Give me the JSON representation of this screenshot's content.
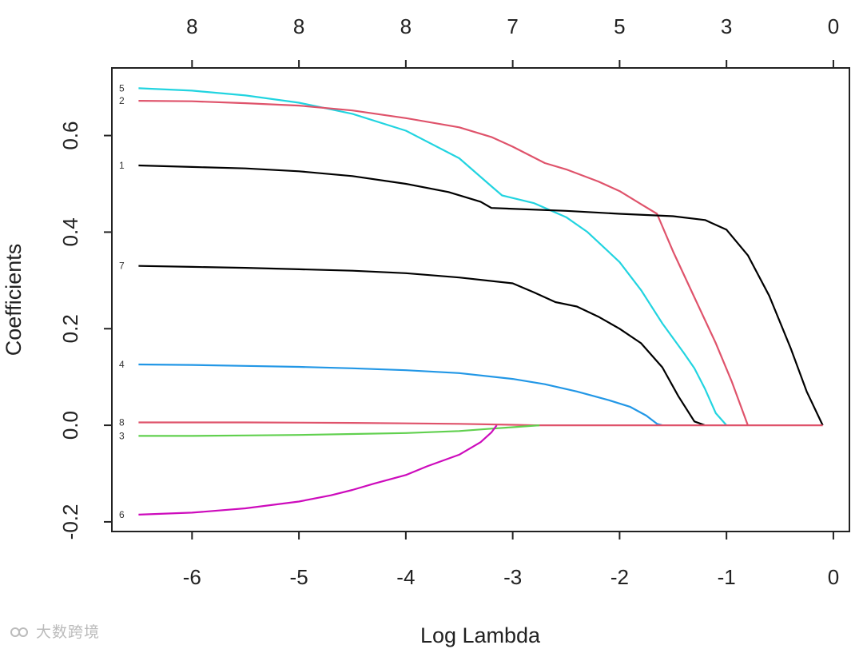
{
  "chart_data": {
    "type": "line",
    "xlabel": "Log Lambda",
    "ylabel": "Coefficients",
    "xlim": [
      -6.75,
      0.15
    ],
    "ylim": [
      -0.22,
      0.74
    ],
    "x_ticks": [
      -6,
      -5,
      -4,
      -3,
      -2,
      -1,
      0
    ],
    "x_tick_labels": [
      "-6",
      "-5",
      "-4",
      "-3",
      "-2",
      "-1",
      "0"
    ],
    "y_ticks": [
      -0.2,
      0.0,
      0.2,
      0.4,
      0.6
    ],
    "y_tick_labels": [
      "-0.2",
      "0.0",
      "0.2",
      "0.4",
      "0.6"
    ],
    "top_ticks": [
      -6,
      -5,
      -4,
      -3,
      -2,
      -1,
      0
    ],
    "top_tick_labels": [
      "8",
      "8",
      "8",
      "7",
      "5",
      "3",
      "0"
    ],
    "series": [
      {
        "name": "5",
        "color": "#22d4e0",
        "points": [
          [
            -6.5,
            0.698
          ],
          [
            -6.0,
            0.693
          ],
          [
            -5.5,
            0.683
          ],
          [
            -5.0,
            0.668
          ],
          [
            -4.5,
            0.645
          ],
          [
            -4.0,
            0.61
          ],
          [
            -3.5,
            0.553
          ],
          [
            -3.2,
            0.495
          ],
          [
            -3.1,
            0.476
          ],
          [
            -2.8,
            0.46
          ],
          [
            -2.5,
            0.431
          ],
          [
            -2.3,
            0.4
          ],
          [
            -2.0,
            0.338
          ],
          [
            -1.8,
            0.28
          ],
          [
            -1.6,
            0.211
          ],
          [
            -1.4,
            0.15
          ],
          [
            -1.3,
            0.118
          ],
          [
            -1.2,
            0.075
          ],
          [
            -1.1,
            0.025
          ],
          [
            -1.0,
            0.0
          ]
        ]
      },
      {
        "name": "2",
        "color": "#df536b",
        "points": [
          [
            -6.5,
            0.672
          ],
          [
            -6.0,
            0.671
          ],
          [
            -5.5,
            0.667
          ],
          [
            -5.0,
            0.662
          ],
          [
            -4.5,
            0.652
          ],
          [
            -4.0,
            0.636
          ],
          [
            -3.5,
            0.617
          ],
          [
            -3.2,
            0.597
          ],
          [
            -3.0,
            0.577
          ],
          [
            -2.7,
            0.543
          ],
          [
            -2.5,
            0.53
          ],
          [
            -2.2,
            0.505
          ],
          [
            -2.0,
            0.485
          ],
          [
            -1.8,
            0.458
          ],
          [
            -1.65,
            0.438
          ],
          [
            -1.5,
            0.36
          ],
          [
            -1.3,
            0.265
          ],
          [
            -1.1,
            0.17
          ],
          [
            -0.95,
            0.09
          ],
          [
            -0.8,
            0.0
          ]
        ]
      },
      {
        "name": "1",
        "color": "#000000",
        "points": [
          [
            -6.5,
            0.538
          ],
          [
            -6.0,
            0.535
          ],
          [
            -5.5,
            0.532
          ],
          [
            -5.0,
            0.526
          ],
          [
            -4.5,
            0.516
          ],
          [
            -4.0,
            0.5
          ],
          [
            -3.6,
            0.483
          ],
          [
            -3.3,
            0.463
          ],
          [
            -3.2,
            0.45
          ],
          [
            -2.5,
            0.444
          ],
          [
            -2.0,
            0.438
          ],
          [
            -1.5,
            0.433
          ],
          [
            -1.2,
            0.425
          ],
          [
            -1.0,
            0.405
          ],
          [
            -0.8,
            0.352
          ],
          [
            -0.6,
            0.268
          ],
          [
            -0.4,
            0.16
          ],
          [
            -0.25,
            0.07
          ],
          [
            -0.1,
            0.0
          ]
        ]
      },
      {
        "name": "7",
        "color": "#000000",
        "points": [
          [
            -6.5,
            0.33
          ],
          [
            -6.0,
            0.328
          ],
          [
            -5.5,
            0.326
          ],
          [
            -5.0,
            0.323
          ],
          [
            -4.5,
            0.32
          ],
          [
            -4.0,
            0.315
          ],
          [
            -3.5,
            0.306
          ],
          [
            -3.0,
            0.294
          ],
          [
            -2.8,
            0.275
          ],
          [
            -2.6,
            0.255
          ],
          [
            -2.4,
            0.246
          ],
          [
            -2.2,
            0.225
          ],
          [
            -2.0,
            0.2
          ],
          [
            -1.8,
            0.17
          ],
          [
            -1.6,
            0.12
          ],
          [
            -1.45,
            0.06
          ],
          [
            -1.3,
            0.008
          ],
          [
            -1.2,
            0.0
          ]
        ]
      },
      {
        "name": "4",
        "color": "#2297e6",
        "points": [
          [
            -6.5,
            0.126
          ],
          [
            -6.0,
            0.125
          ],
          [
            -5.5,
            0.123
          ],
          [
            -5.0,
            0.121
          ],
          [
            -4.5,
            0.118
          ],
          [
            -4.0,
            0.114
          ],
          [
            -3.5,
            0.108
          ],
          [
            -3.0,
            0.096
          ],
          [
            -2.7,
            0.085
          ],
          [
            -2.4,
            0.07
          ],
          [
            -2.1,
            0.052
          ],
          [
            -1.9,
            0.038
          ],
          [
            -1.75,
            0.02
          ],
          [
            -1.65,
            0.003
          ],
          [
            -1.6,
            0.0
          ]
        ]
      },
      {
        "name": "8",
        "color": "#df536b",
        "points": [
          [
            -6.5,
            0.006
          ],
          [
            -5.5,
            0.006
          ],
          [
            -4.5,
            0.005
          ],
          [
            -3.5,
            0.003
          ],
          [
            -3.0,
            0.001
          ],
          [
            -2.8,
            0.0
          ],
          [
            -0.1,
            0.0
          ]
        ]
      },
      {
        "name": "3",
        "color": "#61d04f",
        "points": [
          [
            -6.5,
            -0.022
          ],
          [
            -6.0,
            -0.022
          ],
          [
            -5.5,
            -0.021
          ],
          [
            -5.0,
            -0.02
          ],
          [
            -4.5,
            -0.018
          ],
          [
            -4.0,
            -0.016
          ],
          [
            -3.5,
            -0.012
          ],
          [
            -3.2,
            -0.007
          ],
          [
            -3.0,
            -0.004
          ],
          [
            -2.75,
            0.0
          ]
        ]
      },
      {
        "name": "6",
        "color": "#cd0bbc",
        "points": [
          [
            -6.5,
            -0.185
          ],
          [
            -6.0,
            -0.181
          ],
          [
            -5.5,
            -0.172
          ],
          [
            -5.0,
            -0.158
          ],
          [
            -4.7,
            -0.145
          ],
          [
            -4.5,
            -0.134
          ],
          [
            -4.3,
            -0.121
          ],
          [
            -4.0,
            -0.103
          ],
          [
            -3.8,
            -0.085
          ],
          [
            -3.5,
            -0.061
          ],
          [
            -3.3,
            -0.035
          ],
          [
            -3.2,
            -0.015
          ],
          [
            -3.15,
            0.0
          ]
        ]
      }
    ]
  },
  "watermark": {
    "text": "大数跨境"
  }
}
